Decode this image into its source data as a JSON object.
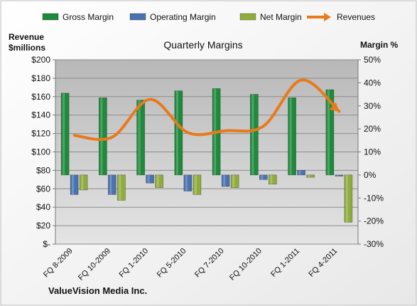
{
  "chart_data": {
    "type": "bar",
    "title": "Quarterly Margins",
    "company": "ValueVision Media Inc.",
    "left_axis": {
      "label_line1": "Revenue",
      "label_line2": "$millions",
      "range": [
        0,
        200
      ],
      "ticks": [
        0,
        20,
        40,
        60,
        80,
        100,
        120,
        140,
        160,
        180,
        200
      ],
      "tick_labels": [
        "$-",
        "$20",
        "$40",
        "$60",
        "$80",
        "$100",
        "$120",
        "$140",
        "$160",
        "$180",
        "$200"
      ]
    },
    "right_axis": {
      "label": "Margin %",
      "range": [
        -30,
        50
      ],
      "ticks": [
        -30,
        -20,
        -10,
        0,
        10,
        20,
        30,
        40,
        50
      ],
      "tick_labels": [
        "-30%",
        "-20%",
        "-10%",
        "0%",
        "10%",
        "20%",
        "30%",
        "40%",
        "50%"
      ]
    },
    "categories": [
      "FQ 8-2009",
      "FQ 10-2009",
      "FQ 1-2010",
      "FQ 5-2010",
      "FQ 7-2010",
      "FQ 10-2010",
      "FQ 1-2011",
      "FQ 4-2011"
    ],
    "series": [
      {
        "name": "Gross Margin",
        "kind": "bar",
        "axis": "right",
        "color": "#1e8a3c",
        "values": [
          35.5,
          33.5,
          32.5,
          36.5,
          37.5,
          35,
          33.5,
          37
        ]
      },
      {
        "name": "Operating Margin",
        "kind": "bar",
        "axis": "right",
        "color": "#4a72b0",
        "values": [
          -8.5,
          -8.5,
          -3.5,
          -7,
          -5,
          -2,
          2,
          -0.5
        ]
      },
      {
        "name": "Net Margin",
        "kind": "bar",
        "axis": "right",
        "color": "#8fad3c",
        "values": [
          -6.5,
          -11,
          -5.5,
          -8.5,
          -5.5,
          -4,
          -1,
          -20.5
        ]
      },
      {
        "name": "Revenues",
        "kind": "line",
        "axis": "left",
        "color": "#e87a1c",
        "values": [
          118,
          116,
          157,
          121,
          123,
          128,
          178,
          144
        ]
      }
    ],
    "legend_position": "top",
    "colors": {
      "plot_background_top": "#b8b8b8",
      "plot_background_bottom": "#e4e4e4",
      "grid": "#8c8c8c",
      "outer_background": "#ffffff"
    }
  }
}
